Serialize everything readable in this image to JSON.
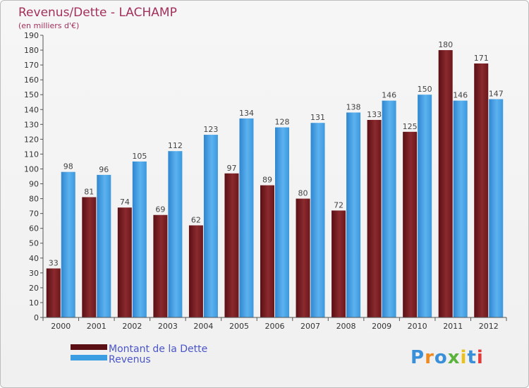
{
  "chart_data": {
    "type": "bar",
    "title": "Revenus/Dette - LACHAMP",
    "subtitle": "(en milliers d'€)",
    "categories": [
      "2000",
      "2001",
      "2002",
      "2003",
      "2004",
      "2005",
      "2006",
      "2007",
      "2008",
      "2009",
      "2010",
      "2011",
      "2012"
    ],
    "series": [
      {
        "name": "Montant de la Dette",
        "color": "#7a1e22",
        "values": [
          33,
          81,
          74,
          69,
          62,
          97,
          89,
          80,
          72,
          133,
          125,
          180,
          171
        ]
      },
      {
        "name": "Revenus",
        "color": "#3b9ee2",
        "values": [
          98,
          96,
          105,
          112,
          123,
          134,
          128,
          131,
          138,
          146,
          150,
          146,
          147
        ]
      }
    ],
    "ylim": [
      0,
      190
    ],
    "yticks": [
      0,
      10,
      20,
      30,
      40,
      50,
      60,
      70,
      80,
      90,
      100,
      110,
      120,
      130,
      140,
      150,
      160,
      170,
      180,
      190
    ],
    "grid": false,
    "legend": "bottom-left"
  },
  "logo": {
    "text": "Proxiti"
  }
}
